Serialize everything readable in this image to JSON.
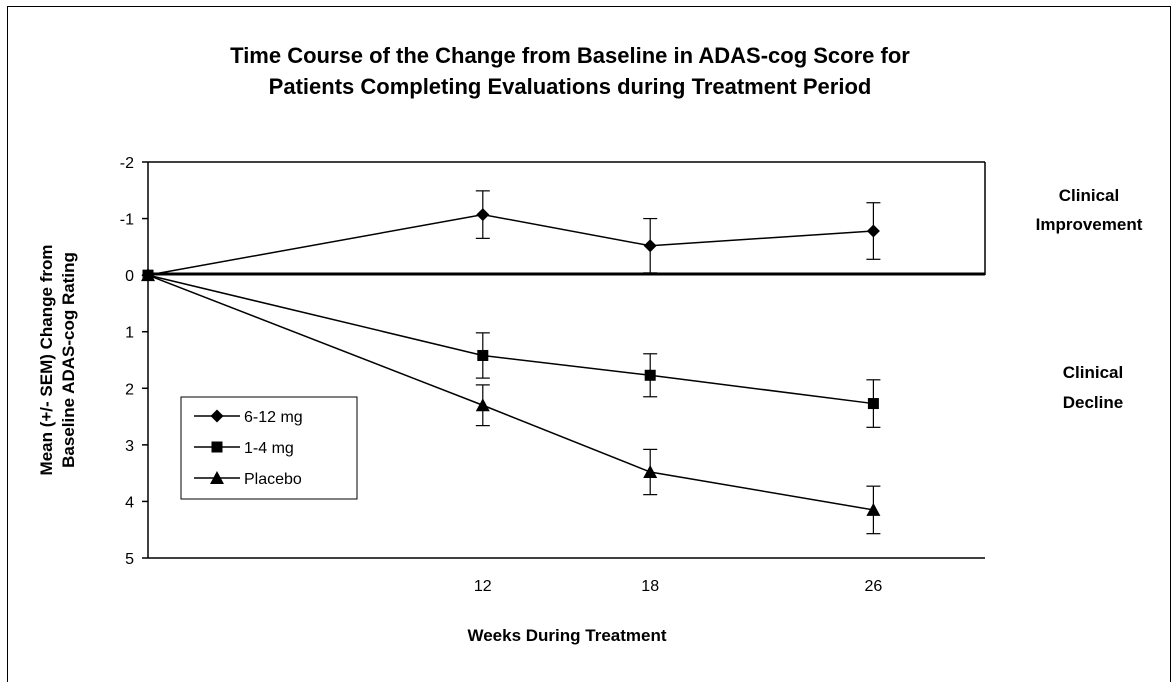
{
  "chart_data": {
    "type": "line",
    "title_line1": "Time Course of the Change from Baseline in ADAS-cog Score for",
    "title_line2": "Patients Completing Evaluations during Treatment Period",
    "xlabel": "Weeks During Treatment",
    "ylabel_line1": "Mean (+/- SEM) Change from",
    "ylabel_line2": "Baseline ADAS-cog Rating",
    "x": [
      0,
      12,
      18,
      26
    ],
    "x_tick_labels": [
      {
        "x": 12,
        "label": "12"
      },
      {
        "x": 18,
        "label": "18"
      },
      {
        "x": 26,
        "label": "26"
      }
    ],
    "xlim": [
      0,
      30
    ],
    "ylim": [
      5,
      -2
    ],
    "y_axis_reversed": true,
    "y_ticks": [
      -2,
      -1,
      0,
      1,
      2,
      3,
      4,
      5
    ],
    "grid": false,
    "legend_position": "lower-left",
    "series": [
      {
        "name": "6-12 mg",
        "marker": "diamond",
        "values": [
          0,
          -1.07,
          -0.52,
          -0.78
        ],
        "sem": [
          0,
          0.42,
          0.48,
          0.5
        ]
      },
      {
        "name": "1-4 mg",
        "marker": "square",
        "values": [
          0,
          1.42,
          1.77,
          2.27
        ],
        "sem": [
          0,
          0.4,
          0.38,
          0.42
        ]
      },
      {
        "name": "Placebo",
        "marker": "triangle",
        "values": [
          0,
          2.3,
          3.48,
          4.15
        ],
        "sem": [
          0,
          0.36,
          0.4,
          0.42
        ]
      }
    ],
    "annotations": {
      "improvement_line1": "Clinical",
      "improvement_line2": "Improvement",
      "decline_line1": "Clinical",
      "decline_line2": "Decline"
    }
  }
}
